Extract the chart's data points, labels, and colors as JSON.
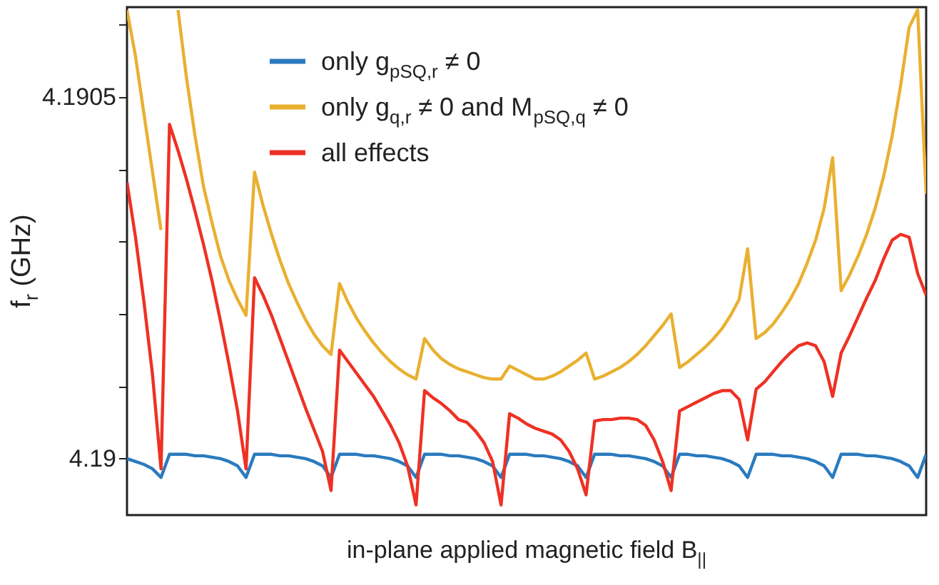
{
  "chart_data": {
    "type": "line",
    "xlabel": "in-plane applied magnetic field B$_{||}$",
    "ylabel": "f$_{r}$ (GHz)",
    "categories": [
      null,
      null,
      null,
      null,
      null,
      null,
      null,
      null,
      null,
      null,
      null,
      null,
      null,
      null,
      null,
      null,
      null,
      null,
      null,
      null,
      null,
      null,
      null,
      null,
      null,
      null,
      null,
      null,
      null,
      null,
      null,
      null,
      null,
      null,
      null,
      null,
      null,
      null,
      null,
      null,
      null,
      null,
      null,
      null,
      null,
      null,
      null,
      null,
      null,
      null,
      null,
      null,
      null,
      null,
      null,
      null,
      null,
      null,
      null,
      null,
      null,
      null,
      null,
      null,
      null,
      null,
      null,
      null,
      null,
      null,
      null,
      null,
      null,
      null,
      null,
      null,
      null,
      null,
      null,
      null,
      null,
      null,
      null,
      null,
      null,
      null,
      null,
      null,
      null,
      null,
      null,
      null,
      null,
      null,
      null
    ],
    "series": [
      {
        "name": "only g$_{pSQ,r}$ ≠ 0",
        "color": "#2a7abf",
        "values": [
          4.19,
          4.189996,
          4.189992,
          4.189986,
          4.189974,
          4.190006,
          4.190006,
          4.190006,
          4.190004,
          4.190004,
          4.190002,
          4.19,
          4.189996,
          4.18999,
          4.189974,
          4.190006,
          4.190006,
          4.190006,
          4.190004,
          4.190004,
          4.190002,
          4.19,
          4.189996,
          4.18999,
          4.189974,
          4.190006,
          4.190006,
          4.190006,
          4.190004,
          4.190004,
          4.190002,
          4.19,
          4.189996,
          4.18999,
          4.189974,
          4.190006,
          4.190006,
          4.190006,
          4.190004,
          4.190004,
          4.190002,
          4.19,
          4.189996,
          4.18999,
          4.189974,
          4.190006,
          4.190006,
          4.190006,
          4.190004,
          4.190004,
          4.190002,
          4.19,
          4.189996,
          4.18999,
          4.189974,
          4.190006,
          4.190006,
          4.190006,
          4.190004,
          4.190004,
          4.190002,
          4.19,
          4.189996,
          4.18999,
          4.189974,
          4.190006,
          4.190006,
          4.190004,
          4.190004,
          4.190002,
          4.19,
          4.189996,
          4.18999,
          4.189974,
          4.190006,
          4.190006,
          4.190006,
          4.190004,
          4.190004,
          4.190002,
          4.19,
          4.189996,
          4.18999,
          4.189974,
          4.190006,
          4.190006,
          4.190006,
          4.190004,
          4.190004,
          4.190002,
          4.19,
          4.189996,
          4.18999,
          4.189974,
          4.190006
        ]
      },
      {
        "name": "only g$_{q,r}$ ≠ 0 and M$_{pSQ,q}$ ≠ 0",
        "color": "#e9b030",
        "values": [
          4.19062,
          4.190556,
          4.190476,
          4.190396,
          4.190316,
          null,
          4.19062,
          4.190526,
          4.190446,
          4.190376,
          4.190326,
          4.19028,
          4.190246,
          4.19022,
          4.190198,
          4.190396,
          4.19035,
          4.19031,
          4.190274,
          4.190242,
          4.190216,
          4.190192,
          4.190172,
          4.190156,
          4.190144,
          4.190242,
          4.190216,
          4.190194,
          4.190176,
          4.19016,
          4.190146,
          4.190134,
          4.190124,
          4.190116,
          4.19011,
          4.190166,
          4.19015,
          4.190138,
          4.19013,
          4.190124,
          4.19012,
          4.190116,
          4.190112,
          4.19011,
          4.19011,
          4.190128,
          4.190122,
          4.190116,
          4.19011,
          4.19011,
          4.190114,
          4.19012,
          4.190128,
          4.190136,
          4.190146,
          4.19011,
          4.190114,
          4.19012,
          4.190126,
          4.190134,
          4.190144,
          4.190156,
          4.19017,
          4.190184,
          4.1902,
          4.190126,
          4.190134,
          4.190144,
          4.190154,
          4.190166,
          4.19018,
          4.190198,
          4.19022,
          4.19029,
          4.190166,
          4.190174,
          4.190186,
          4.190202,
          4.19022,
          4.190242,
          4.19027,
          4.190302,
          4.190346,
          4.190416,
          4.190232,
          4.190254,
          4.19028,
          4.19031,
          4.190346,
          4.19039,
          4.190446,
          4.190516,
          4.190596,
          4.19062,
          4.190366
        ]
      },
      {
        "name": "all effects",
        "color": "#ee3124",
        "values": [
          4.190382,
          4.190306,
          4.190216,
          4.190116,
          4.189986,
          4.190462,
          4.190426,
          4.190386,
          4.190342,
          4.190296,
          4.190246,
          4.19019,
          4.19013,
          4.190066,
          4.189986,
          4.19025,
          4.190226,
          4.190198,
          4.190166,
          4.190134,
          4.190102,
          4.19007,
          4.19004,
          4.19001,
          4.189956,
          4.19015,
          4.190134,
          4.190118,
          4.190102,
          4.190086,
          4.190066,
          4.190046,
          4.190022,
          4.18999,
          4.189936,
          4.190094,
          4.190084,
          4.190076,
          4.190066,
          4.190054,
          4.19005,
          4.190038,
          4.190022,
          4.189996,
          4.189936,
          4.190062,
          4.190056,
          4.190048,
          4.190042,
          4.190038,
          4.190034,
          4.190026,
          4.19001,
          4.189986,
          4.18995,
          4.190052,
          4.190054,
          4.190054,
          4.190056,
          4.190056,
          4.190054,
          4.190046,
          4.190026,
          4.189996,
          4.189956,
          4.190066,
          4.190072,
          4.190078,
          4.190084,
          4.19009,
          4.190094,
          4.190094,
          4.190082,
          4.190026,
          4.190096,
          4.190106,
          4.19012,
          4.190134,
          4.190146,
          4.190156,
          4.19016,
          4.190156,
          4.190134,
          4.190086,
          4.190146,
          4.19017,
          4.190196,
          4.190222,
          4.190246,
          4.190276,
          4.190302,
          4.19031,
          4.190306,
          4.190256,
          4.190226
        ]
      }
    ],
    "ylim": [
      4.189922,
      4.190624
    ],
    "yticks": [
      4.19,
      {
        "value": 4.1901,
        "label": null
      },
      {
        "value": 4.1902,
        "label": null
      },
      {
        "value": 4.1903,
        "label": null
      },
      {
        "value": 4.1904,
        "label": null
      },
      4.1905,
      {
        "value": 4.1906,
        "label": null
      }
    ],
    "grid": false,
    "legend": "top",
    "tick_labels": "y",
    "marker": "none",
    "line_style": "solid"
  }
}
